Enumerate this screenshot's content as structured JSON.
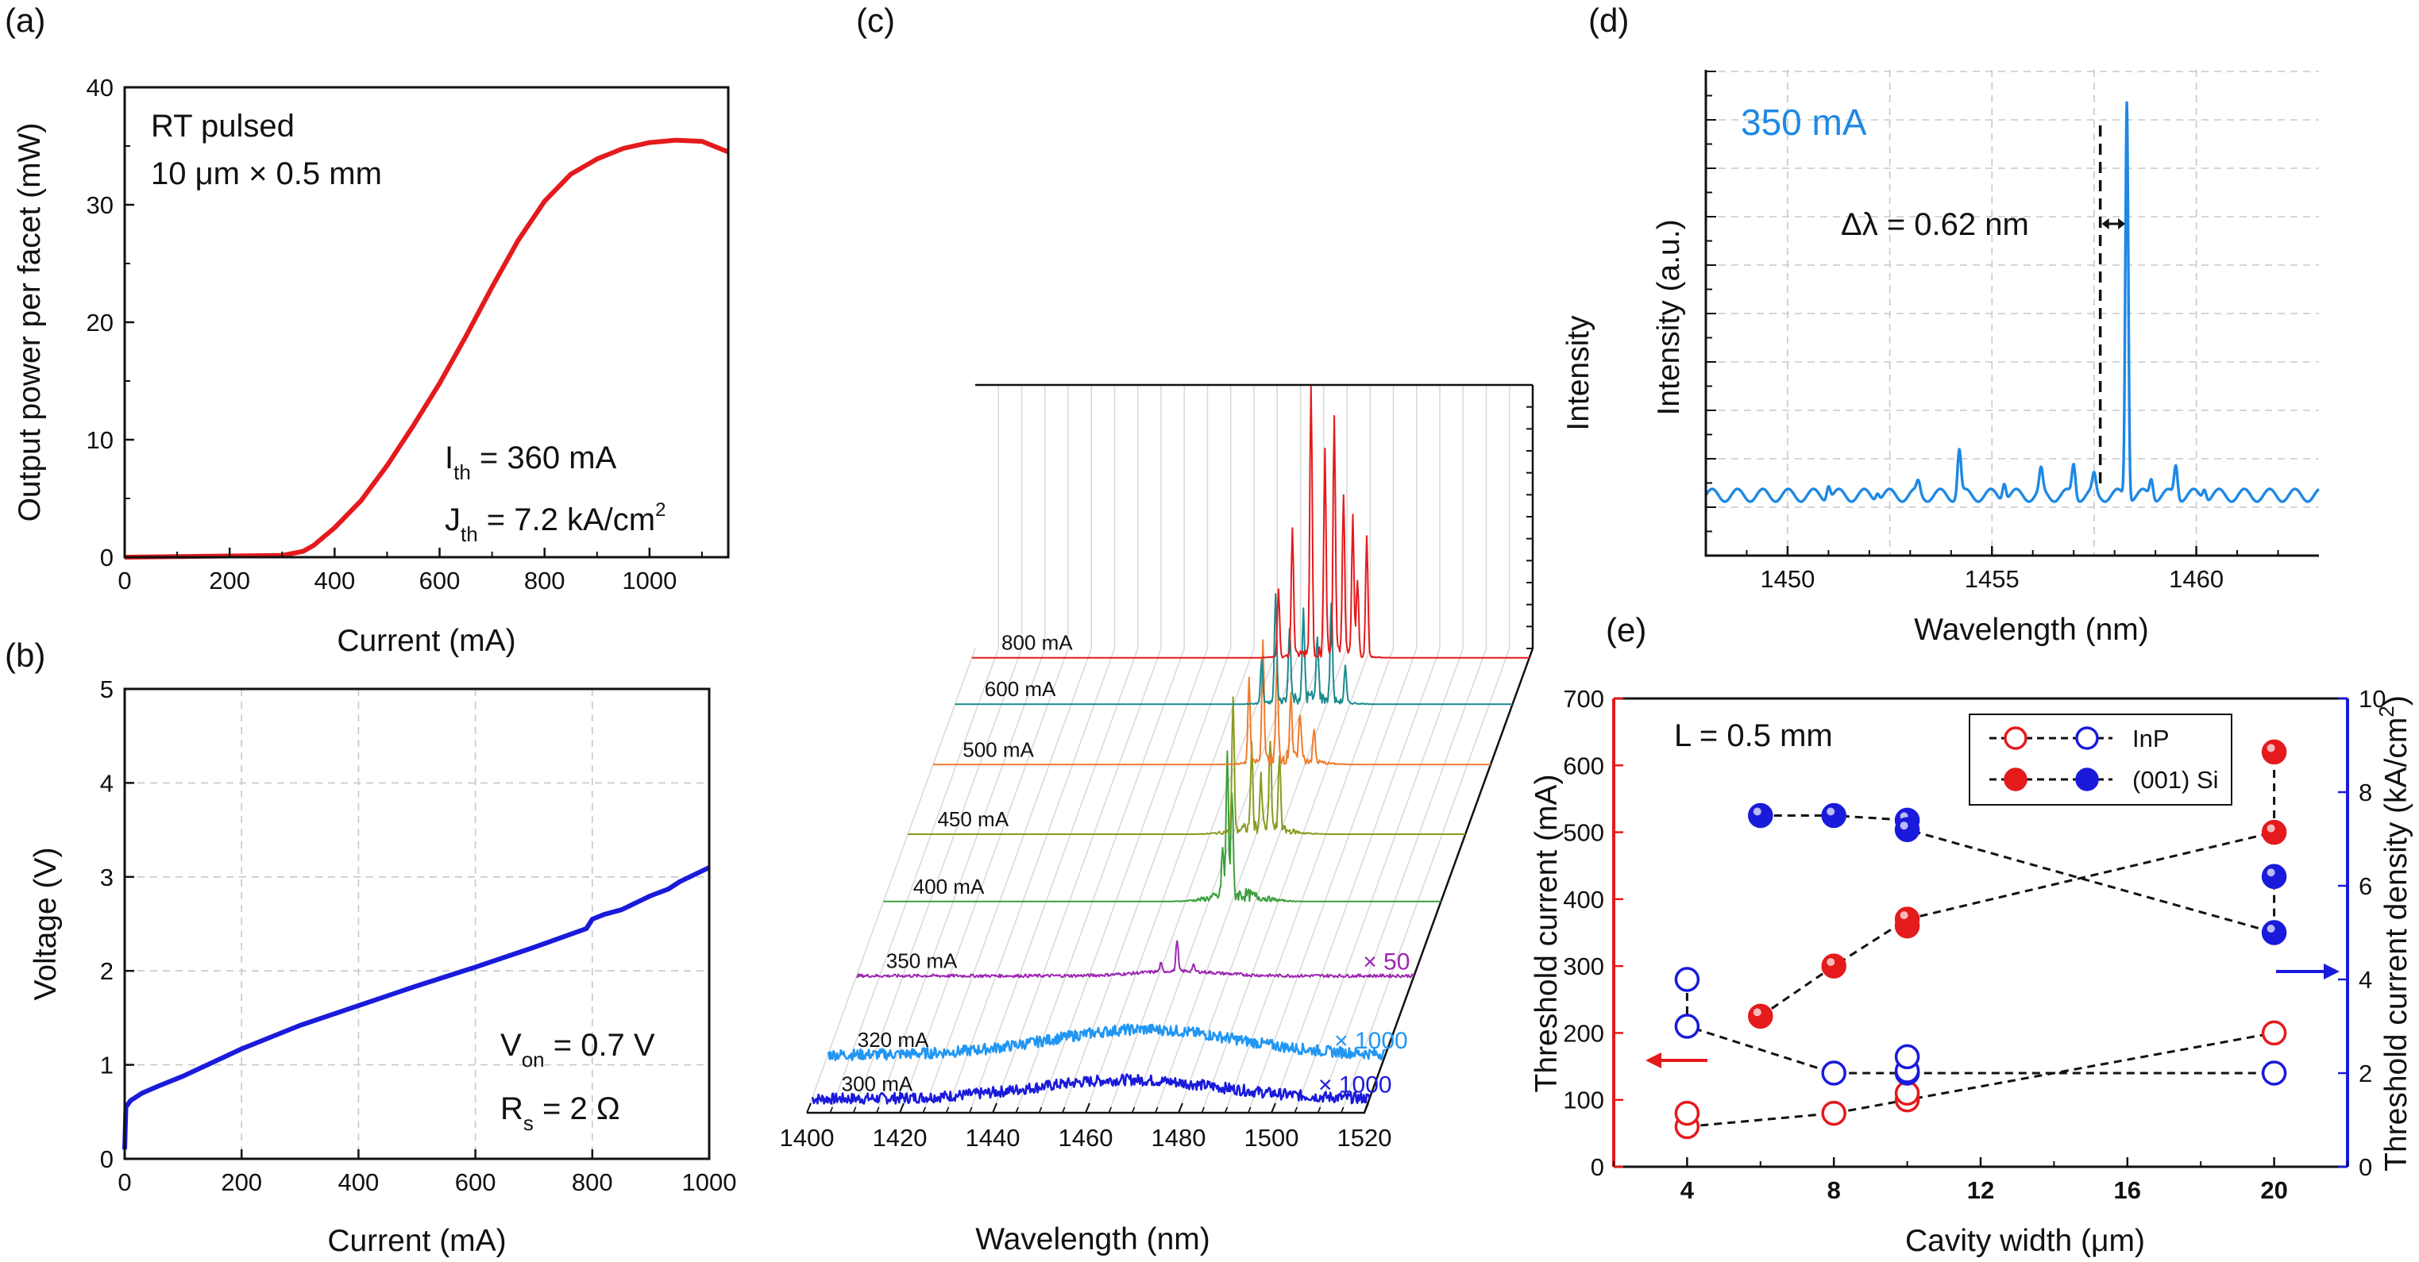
{
  "chart_data": [
    {
      "panel": "(a)",
      "type": "line",
      "xlabel": "Current (mA)",
      "ylabel": "Output power per facet (mW)",
      "xlim": [
        0,
        1150
      ],
      "ylim": [
        0,
        40
      ],
      "xticks": [
        "0",
        "200",
        "400",
        "600",
        "800",
        "1000"
      ],
      "yticks": [
        "0",
        "10",
        "20",
        "30",
        "40"
      ],
      "grid": false,
      "annotations": [
        "RT pulsed",
        "10 μm × 0.5 mm"
      ],
      "ith": {
        "main": "I",
        "sub": "th",
        "rest": " = 360 mA"
      },
      "jth": {
        "main": "J",
        "sub": "th",
        "rest": " = 7.2 kA/cm",
        "sup": "2"
      },
      "series": [
        {
          "color": "#e41a1c",
          "x": [
            0,
            100,
            200,
            300,
            340,
            360,
            400,
            450,
            500,
            550,
            600,
            650,
            700,
            750,
            800,
            850,
            900,
            950,
            1000,
            1050,
            1100,
            1150
          ],
          "y": [
            0,
            0.05,
            0.1,
            0.15,
            0.5,
            1.0,
            2.5,
            4.8,
            7.8,
            11.2,
            14.8,
            18.8,
            23.0,
            27.0,
            30.3,
            32.6,
            33.9,
            34.8,
            35.3,
            35.5,
            35.4,
            34.5
          ]
        }
      ]
    },
    {
      "panel": "(b)",
      "type": "line",
      "xlabel": "Current (mA)",
      "ylabel": "Voltage (V)",
      "xlim": [
        0,
        1000
      ],
      "ylim": [
        0,
        5
      ],
      "xticks": [
        "0",
        "200",
        "400",
        "600",
        "800",
        "1000"
      ],
      "yticks": [
        "0",
        "1",
        "2",
        "3",
        "4",
        "5"
      ],
      "grid": true,
      "von": {
        "main": "V",
        "sub": "on",
        "rest": " = 0.7 V"
      },
      "rs": {
        "main": "R",
        "sub": "s",
        "rest": " = 2 Ω"
      },
      "series": [
        {
          "color": "#1a1adb",
          "x": [
            0,
            2,
            10,
            30,
            60,
            100,
            200,
            300,
            400,
            500,
            600,
            700,
            790,
            800,
            820,
            850,
            880,
            900,
            930,
            950,
            1000
          ],
          "y": [
            0.1,
            0.55,
            0.62,
            0.7,
            0.78,
            0.88,
            1.17,
            1.42,
            1.63,
            1.84,
            2.04,
            2.25,
            2.45,
            2.55,
            2.6,
            2.65,
            2.74,
            2.8,
            2.87,
            2.95,
            3.1
          ]
        }
      ]
    },
    {
      "panel": "(c)",
      "type": "line",
      "subtype": "waterfall spectra",
      "xlabel": "Wavelength (nm)",
      "ylabel": "Intensity",
      "xlim": [
        1400,
        1520
      ],
      "xticks": [
        "1400",
        "1420",
        "1440",
        "1460",
        "1480",
        "1500",
        "1520"
      ],
      "series": [
        {
          "name": "300 mA",
          "color": "#1a1adb",
          "scale": "× 1000"
        },
        {
          "name": "320 mA",
          "color": "#2196f3",
          "scale": "× 1000"
        },
        {
          "name": "350 mA",
          "color": "#9c27b0",
          "scale": "× 50"
        },
        {
          "name": "400 mA",
          "color": "#3b9f3b",
          "scale": ""
        },
        {
          "name": "450 mA",
          "color": "#8b9a1f",
          "scale": ""
        },
        {
          "name": "500 mA",
          "color": "#f07c2e",
          "scale": ""
        },
        {
          "name": "600 mA",
          "color": "#1a8a8f",
          "scale": ""
        },
        {
          "name": "800 mA",
          "color": "#e41a1c",
          "scale": ""
        }
      ]
    },
    {
      "panel": "(d)",
      "type": "line",
      "xlabel": "Wavelength (nm)",
      "ylabel": "Intensity (a.u.)",
      "xlim": [
        1448,
        1463
      ],
      "xticks": [
        "1450",
        "1455",
        "1460"
      ],
      "grid": true,
      "label": "350 mA",
      "delta": "Δλ = 0.62 nm",
      "peak_wavelength": 1458.3,
      "series": [
        {
          "name": "350 mA",
          "color": "#1e88e5"
        }
      ]
    },
    {
      "panel": "(e)",
      "type": "scatter",
      "xlabel": "Cavity width (μm)",
      "ylabel": "Threshold current (mA)",
      "ylabel_right": "Threshold current density (kA/cm",
      "ylabel_right_sup": "2",
      "ylabel_right_end": ")",
      "annotation": "L = 0.5 mm",
      "xlim": [
        2,
        22
      ],
      "ylim": [
        0,
        700
      ],
      "ylim_right": [
        0,
        10
      ],
      "xticks": [
        "4",
        "8",
        "12",
        "16",
        "20"
      ],
      "yticks": [
        "0",
        "100",
        "200",
        "300",
        "400",
        "500",
        "600",
        "700"
      ],
      "yticks_right": [
        "0",
        "2",
        "4",
        "6",
        "8",
        "10"
      ],
      "legend": [
        "InP",
        "(001) Si"
      ],
      "series": [
        {
          "name": "InP",
          "axis": "left",
          "color": "#e41a1c",
          "filled": false,
          "x": [
            4,
            4,
            8,
            10,
            10,
            10,
            20
          ],
          "y": [
            60,
            80,
            80,
            100,
            110,
            140,
            200
          ]
        },
        {
          "name": "InP",
          "axis": "right",
          "color": "#1a1adb",
          "filled": false,
          "x": [
            4,
            4,
            8,
            10,
            10,
            10,
            20
          ],
          "y": [
            4.0,
            3.0,
            2.0,
            2.0,
            2.05,
            2.35,
            2.0
          ]
        },
        {
          "name": "(001) Si",
          "axis": "left",
          "color": "#e41a1c",
          "filled": true,
          "x": [
            6,
            8,
            10,
            10,
            20,
            20
          ],
          "y": [
            225,
            300,
            360,
            370,
            500,
            620
          ]
        },
        {
          "name": "(001) Si",
          "axis": "right",
          "color": "#1a1adb",
          "filled": true,
          "x": [
            6,
            8,
            10,
            10,
            20,
            20
          ],
          "y": [
            7.5,
            7.5,
            7.4,
            7.2,
            6.2,
            5.0
          ]
        }
      ]
    }
  ]
}
